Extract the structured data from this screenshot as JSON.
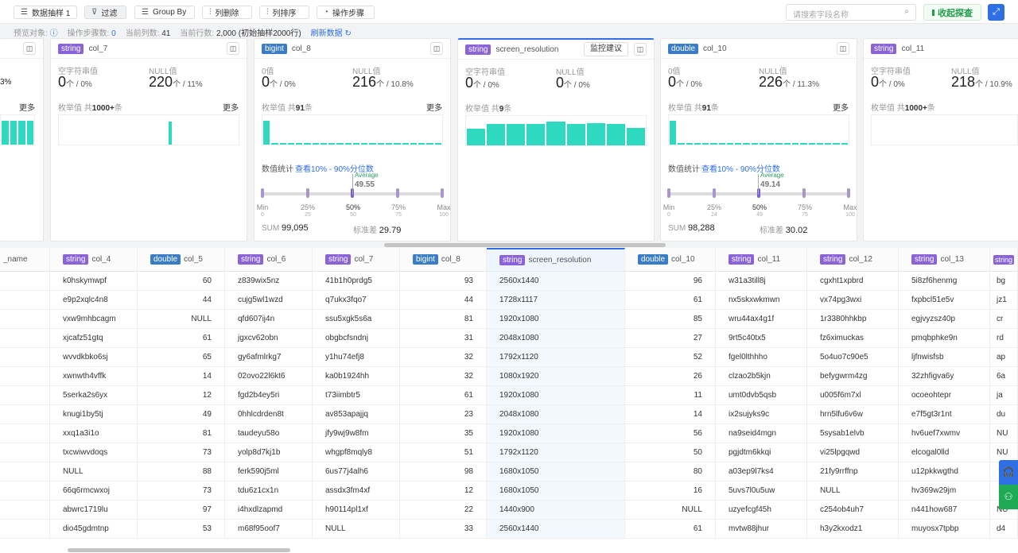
{
  "toolbar": {
    "buttons": [
      {
        "icon": "sample-icon",
        "glyph": "☰",
        "label": "数据抽样 1"
      },
      {
        "icon": "filter-icon",
        "glyph": "⊽",
        "label": "过滤",
        "active": true
      },
      {
        "icon": "group-by-icon",
        "glyph": "☰",
        "label": "Group By"
      },
      {
        "icon": "delete-column-icon",
        "glyph": "⫶",
        "label": "列删除"
      },
      {
        "icon": "sort-column-icon",
        "glyph": "⫶",
        "label": "列排序"
      },
      {
        "icon": "history-icon",
        "glyph": "◔",
        "label": "操作步骤"
      }
    ],
    "search_placeholder": "请搜索字段名称",
    "collapse_label": "收起探查"
  },
  "info": {
    "preview_label": "预览对象:",
    "steps_label": "操作步骤数:",
    "steps": "0",
    "cols_label": "当前列数:",
    "cols": "41",
    "rows_label": "当前行数:",
    "rows": "2,000 (初始抽样2000行)",
    "refresh": "刷新数据"
  },
  "colors": {
    "accent": "#2f6fe4",
    "bar": "#2fd9c0",
    "string_tag": "#8a63d8",
    "numeric_tag": "#3a7dc6",
    "green": "#1f9d48"
  },
  "cards": [
    {
      "type": "string",
      "name": "col_7",
      "l1": "空字符串值",
      "v1": "0",
      "p1": "个 / 0%",
      "l2": "NULL值",
      "v2": "220",
      "p2": "个 / 11%",
      "enum": "枚举值 共",
      "enum_n": "1000+",
      "enum_s": "条",
      "more": "更多",
      "bars": [
        0,
        0,
        0,
        0,
        0,
        0,
        0,
        0,
        0,
        0,
        0,
        0,
        0,
        0,
        0,
        0,
        0,
        0,
        0,
        0,
        0,
        0,
        0,
        0.78,
        0,
        0,
        0,
        0,
        0,
        0,
        0,
        0,
        0,
        0,
        0,
        0,
        0,
        0
      ]
    },
    {
      "type": "bigint",
      "name": "col_8",
      "l1": "0值",
      "v1": "0",
      "p1": "个 / 0%",
      "l2": "NULL值",
      "v2": "216",
      "p2": "个 / 10.8%",
      "enum": "枚举值 共",
      "enum_n": "91",
      "enum_s": "条",
      "more": "更多",
      "bars": [
        0.8,
        0.06,
        0.06,
        0.06,
        0.06,
        0.06,
        0.06,
        0.06,
        0.06,
        0.06,
        0.06,
        0.06,
        0.06,
        0.06,
        0.06,
        0.06,
        0.06,
        0.06,
        0.06,
        0.06,
        0.06,
        0.05
      ],
      "stats": {
        "title": "数值统计",
        "link": "查看10% - 90%分位数",
        "avg_label": "Average",
        "avg": "49.55",
        "q": [
          {
            "l": "Min",
            "v": "0"
          },
          {
            "l": "25%",
            "v": "25"
          },
          {
            "l": "50%",
            "v": "50"
          },
          {
            "l": "75%",
            "v": "75"
          },
          {
            "l": "Max",
            "v": "100"
          }
        ],
        "sum_label": "SUM",
        "sum": "99,095",
        "std_label": "标准差",
        "std": "29.79"
      }
    },
    {
      "type": "string",
      "name": "screen_resolution",
      "selected": true,
      "monitor": "监控建议",
      "l1": "空字符串值",
      "v1": "0",
      "p1": "个 / 0%",
      "l2": "NULL值",
      "v2": "0",
      "p2": "个 / 0%",
      "enum": "枚举值 共",
      "enum_n": "9",
      "enum_s": "条",
      "more": "",
      "bars": [
        0.58,
        0.74,
        0.73,
        0.72,
        0.8,
        0.73,
        0.77,
        0.74,
        0.6
      ]
    },
    {
      "type": "double",
      "name": "col_10",
      "l1": "0值",
      "v1": "0",
      "p1": "个 / 0%",
      "l2": "NULL值",
      "v2": "226",
      "p2": "个 / 11.3%",
      "enum": "枚举值 共",
      "enum_n": "91",
      "enum_s": "条",
      "more": "更多",
      "bars": [
        0.8,
        0.06,
        0.06,
        0.06,
        0.06,
        0.06,
        0.06,
        0.06,
        0.06,
        0.06,
        0.06,
        0.06,
        0.06,
        0.06,
        0.06,
        0.06,
        0.06,
        0.06,
        0.06,
        0.06,
        0.06,
        0.05
      ],
      "stats": {
        "title": "数值统计",
        "link": "查看10% - 90%分位数",
        "avg_label": "Average",
        "avg": "49.14",
        "q": [
          {
            "l": "Min",
            "v": "0"
          },
          {
            "l": "25%",
            "v": "24"
          },
          {
            "l": "50%",
            "v": "49"
          },
          {
            "l": "75%",
            "v": "75"
          },
          {
            "l": "Max",
            "v": "100"
          }
        ],
        "sum_label": "SUM",
        "sum": "98,288",
        "std_label": "标准差",
        "std": "30.02"
      }
    },
    {
      "type": "string",
      "name": "col_11",
      "l1": "空字符串值",
      "v1": "0",
      "p1": "个 / 0%",
      "l2": "NULL值",
      "v2": "218",
      "p2": "个 / 10.9%",
      "enum": "枚举值 共",
      "enum_n": "1000+",
      "enum_s": "条",
      "more": "",
      "bars": []
    }
  ],
  "partial_card": {
    "pct": "3%",
    "more": "更多"
  },
  "table": {
    "columns": [
      {
        "type": "",
        "name": "_name"
      },
      {
        "type": "string",
        "name": "col_4"
      },
      {
        "type": "double",
        "name": "col_5",
        "num": true
      },
      {
        "type": "string",
        "name": "col_6"
      },
      {
        "type": "string",
        "name": "col_7"
      },
      {
        "type": "bigint",
        "name": "col_8",
        "num": true
      },
      {
        "type": "string",
        "name": "screen_resolution",
        "selected": true
      },
      {
        "type": "double",
        "name": "col_10",
        "num": true
      },
      {
        "type": "string",
        "name": "col_11"
      },
      {
        "type": "string",
        "name": "col_12"
      },
      {
        "type": "string",
        "name": "col_13"
      },
      {
        "type": "string",
        "name": ""
      }
    ],
    "rows": [
      [
        "",
        "k0hskymwpf",
        "60",
        "z839wix5nz",
        "41b1h0prdg5",
        "93",
        "2560x1440",
        "96",
        "w31a3till8j",
        "cgxht1xpbrd",
        "5i8zf6henmg",
        "bg"
      ],
      [
        "",
        "e9p2xqlc4n8",
        "44",
        "cujg5wl1wzd",
        "q7ukx3fqo7",
        "44",
        "1728x1117",
        "61",
        "nx5skxwkmwn",
        "vx74pg3wxi",
        "fxpbcl51e5v",
        "jz1"
      ],
      [
        "",
        "vxw9mhbcagm",
        "NULL",
        "qfd607ij4n",
        "ssu5xgk5s6a",
        "81",
        "1920x1080",
        "85",
        "wru44ax4g1f",
        "1r3380hhkbp",
        "egjvyzsz40p",
        "cr"
      ],
      [
        "",
        "xjcafz51gtq",
        "61",
        "jgxcv62obn",
        "obgbcfsndnj",
        "31",
        "2048x1080",
        "27",
        "9rt5c40tx5",
        "fz6ximuckas",
        "pmqbphke9n",
        "rd"
      ],
      [
        "",
        "wvvdkbko6sj",
        "65",
        "gy6afmlrkg7",
        "y1hu74efj8",
        "32",
        "1792x1120",
        "52",
        "fgel0lthhho",
        "5o4uo7c90e5",
        "ljfnwisfsb",
        "ap"
      ],
      [
        "",
        "xwnwth4vffk",
        "14",
        "02ovo22l6kt6",
        "ka0b1924hh",
        "32",
        "1080x1920",
        "26",
        "clzao2b5kjn",
        "befygwrm4zg",
        "32zhfigva6y",
        "6a"
      ],
      [
        "",
        "5serka2s6yx",
        "12",
        "fgd2b4ey5ri",
        "t73iimbtr5",
        "61",
        "1920x1080",
        "11",
        "umt0dvb5qsb",
        "u005f6m7xl",
        "ocoeohtepr",
        "ja"
      ],
      [
        "",
        "knugi1by5tj",
        "49",
        "0hhlcdrden8t",
        "av853apajjq",
        "23",
        "2048x1080",
        "14",
        "ix2sujyks9c",
        "hrn5lfu6v6w",
        "e7f5gt3r1nt",
        "du"
      ],
      [
        "",
        "xxq1a3i1o",
        "81",
        "taudeyu58o",
        "jfy9wj9w8fm",
        "35",
        "1920x1080",
        "56",
        "na9seid4mgn",
        "5sysab1elvb",
        "hv6uef7xwmv",
        "NU"
      ],
      [
        "",
        "txcwiwvdoqs",
        "73",
        "yolp8d7kj1b",
        "whgpf8mqly8",
        "51",
        "1792x1120",
        "50",
        "pgjdtm6kkqi",
        "vi25lpgqwd",
        "elcogal0lld",
        "NU"
      ],
      [
        "",
        "NULL",
        "88",
        "ferk590j5ml",
        "6us77j4alh6",
        "98",
        "1680x1050",
        "80",
        "a03ep9l7ks4",
        "21fy9rrffnp",
        "u12pkkwgthd",
        ""
      ],
      [
        "",
        "66q6rmcwxoj",
        "73",
        "tdu6z1cx1n",
        "assdx3fm4xf",
        "12",
        "1680x1050",
        "16",
        "5uvs7l0u5uw",
        "NULL",
        "hv369w29jm",
        ""
      ],
      [
        "",
        "abwrc1719lu",
        "97",
        "i4hxdlzapmd",
        "h90114pl1xf",
        "22",
        "1440x900",
        "NULL",
        "uzyefcgf45h",
        "c254ob4uh7",
        "n441how687",
        "NU"
      ],
      [
        "",
        "dio45gdmtnp",
        "53",
        "m68f95oof7",
        "NULL",
        "33",
        "2560x1440",
        "61",
        "mvtw88jhur",
        "h3y2kxodz1",
        "muyosx7tpbp",
        "d4"
      ]
    ]
  }
}
